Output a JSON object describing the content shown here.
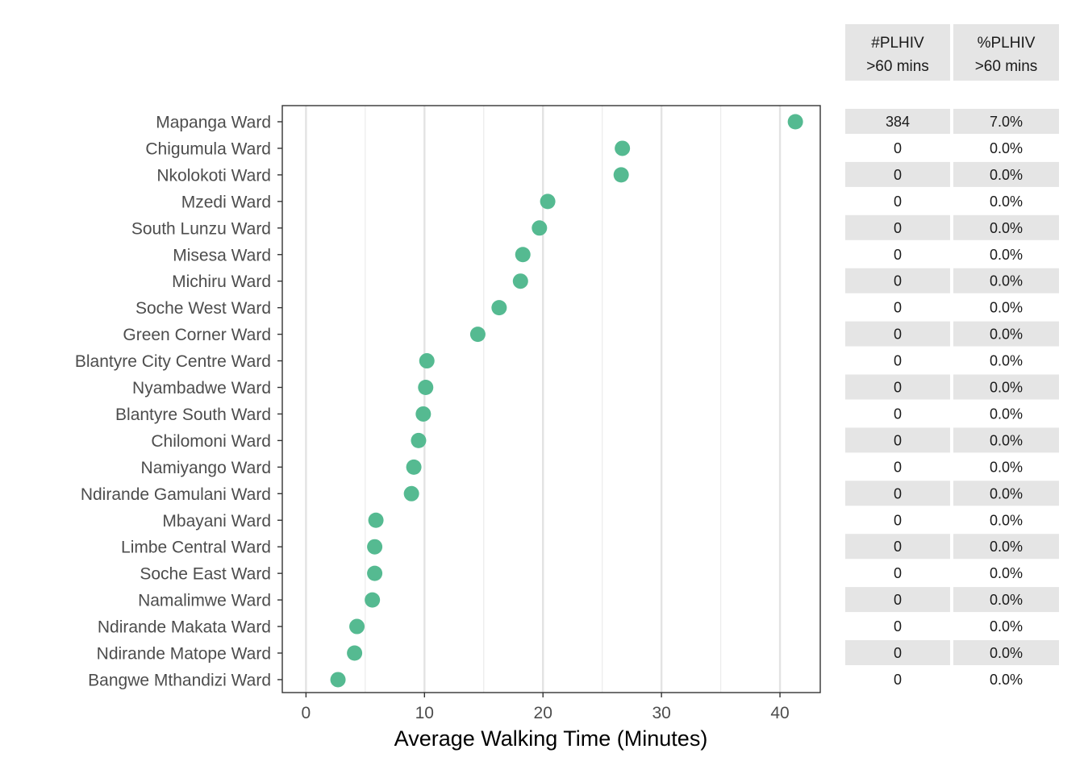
{
  "chart_data": {
    "type": "scatter",
    "title": "",
    "xlabel": "Average Walking Time (Minutes)",
    "ylabel": "",
    "xlim": [
      -2,
      43.4
    ],
    "xticks": [
      0,
      10,
      20,
      30,
      40
    ],
    "grid": true,
    "point_color": "#55BA91",
    "categories": [
      "Mapanga Ward",
      "Chigumula Ward",
      "Nkolokoti Ward",
      "Mzedi Ward",
      "South Lunzu Ward",
      "Misesa Ward",
      "Michiru Ward",
      "Soche West Ward",
      "Green Corner Ward",
      "Blantyre City Centre Ward",
      "Nyambadwe Ward",
      "Blantyre South Ward",
      "Chilomoni Ward",
      "Namiyango Ward",
      "Ndirande Gamulani Ward",
      "Mbayani Ward",
      "Limbe Central Ward",
      "Soche East Ward",
      "Namalimwe Ward",
      "Ndirande Makata Ward",
      "Ndirande Matope Ward",
      "Bangwe Mthandizi Ward"
    ],
    "values": [
      41.3,
      26.7,
      26.6,
      20.4,
      19.7,
      18.3,
      18.1,
      16.3,
      14.5,
      10.2,
      10.1,
      9.9,
      9.5,
      9.1,
      8.9,
      5.9,
      5.8,
      5.8,
      5.6,
      4.3,
      4.1,
      2.7
    ]
  },
  "table": {
    "headers": [
      {
        "line1": "#PLHIV",
        "line2": ">60 mins"
      },
      {
        "line1": "%PLHIV",
        "line2": ">60 mins"
      }
    ],
    "rows": [
      [
        "384",
        "7.0%"
      ],
      [
        "0",
        "0.0%"
      ],
      [
        "0",
        "0.0%"
      ],
      [
        "0",
        "0.0%"
      ],
      [
        "0",
        "0.0%"
      ],
      [
        "0",
        "0.0%"
      ],
      [
        "0",
        "0.0%"
      ],
      [
        "0",
        "0.0%"
      ],
      [
        "0",
        "0.0%"
      ],
      [
        "0",
        "0.0%"
      ],
      [
        "0",
        "0.0%"
      ],
      [
        "0",
        "0.0%"
      ],
      [
        "0",
        "0.0%"
      ],
      [
        "0",
        "0.0%"
      ],
      [
        "0",
        "0.0%"
      ],
      [
        "0",
        "0.0%"
      ],
      [
        "0",
        "0.0%"
      ],
      [
        "0",
        "0.0%"
      ],
      [
        "0",
        "0.0%"
      ],
      [
        "0",
        "0.0%"
      ],
      [
        "0",
        "0.0%"
      ],
      [
        "0",
        "0.0%"
      ]
    ],
    "band_color": "#e5e5e5"
  }
}
